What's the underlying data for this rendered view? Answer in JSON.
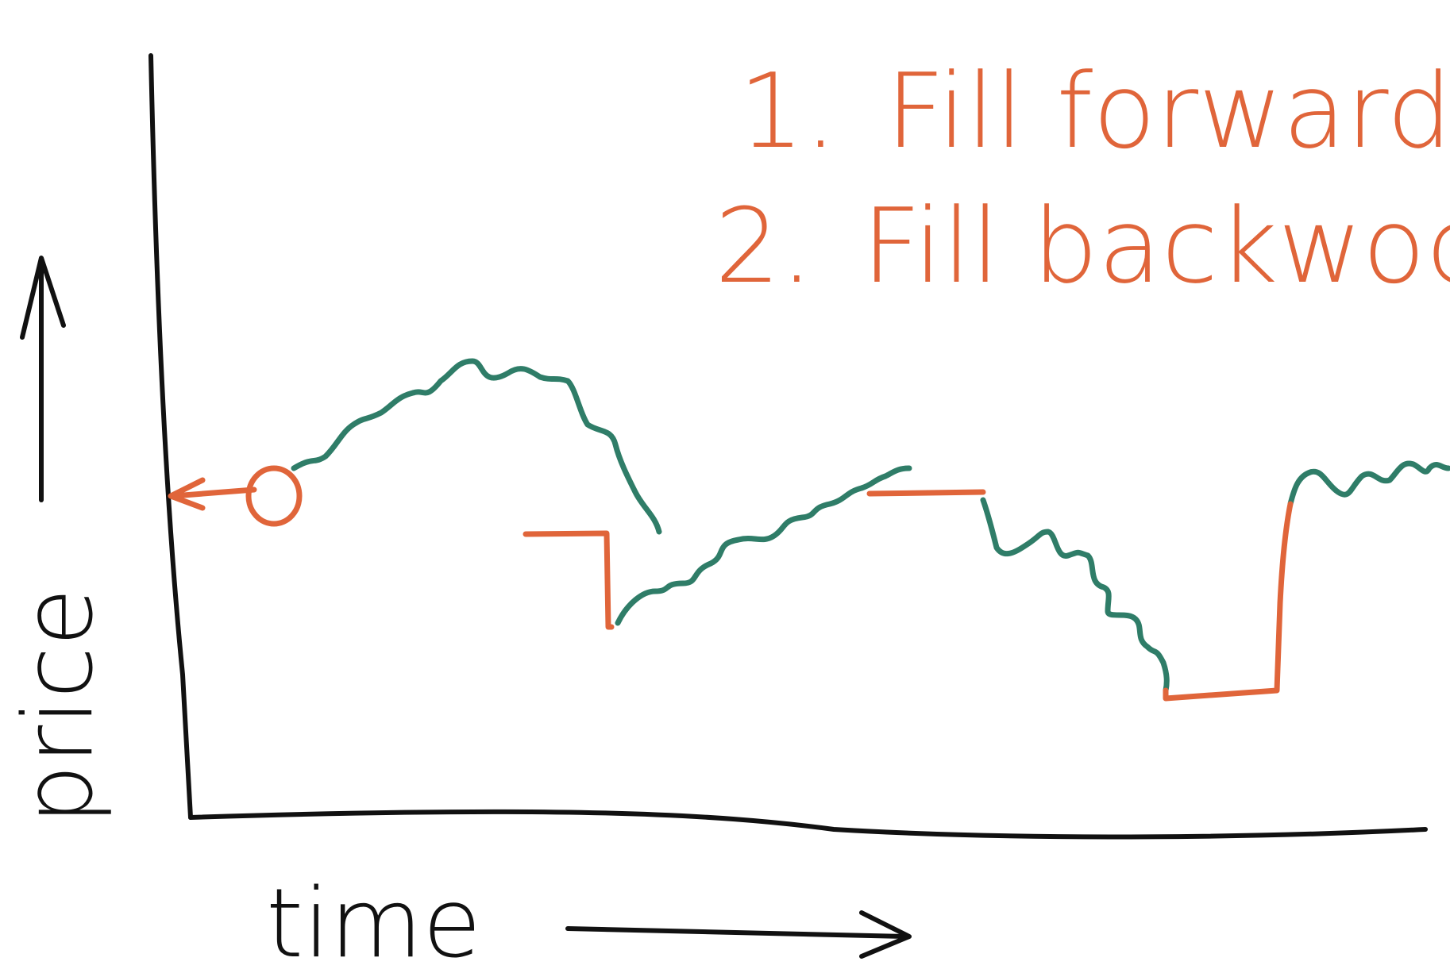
{
  "axes": {
    "y_label": "price",
    "x_label": "time"
  },
  "legend": {
    "items": [
      {
        "number": "1.",
        "text": "Fill forward"
      },
      {
        "number": "2.",
        "text": "Fill backwod"
      }
    ]
  },
  "colors": {
    "axis": "#111111",
    "observed": "#2f7d68",
    "filled": "#e0653a"
  },
  "icons": {
    "y_arrow": "arrow-up-icon",
    "x_arrow": "arrow-right-icon",
    "back_arrow": "arrow-left-icon"
  }
}
